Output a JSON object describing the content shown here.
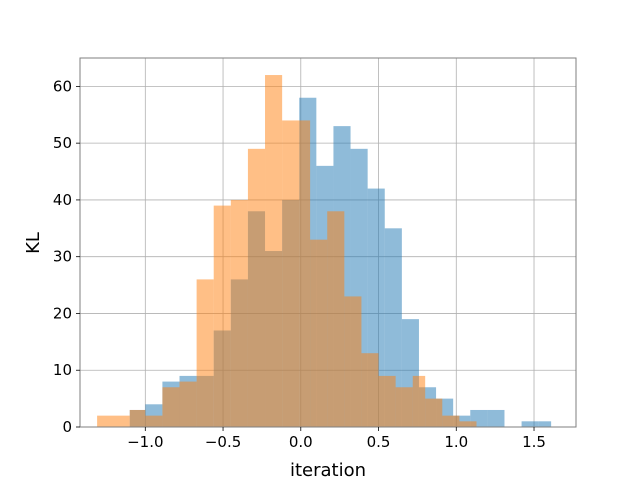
{
  "chart_data": {
    "type": "histogram",
    "xlabel": "iteration",
    "ylabel": "KL",
    "xlim": [
      -1.42,
      1.77
    ],
    "ylim": [
      0,
      65
    ],
    "grid": true,
    "x_ticks": [
      -1.0,
      -0.5,
      0.0,
      0.5,
      1.0,
      1.5
    ],
    "x_tick_labels": [
      "−1.0",
      "−0.5",
      "0.0",
      "0.5",
      "1.0",
      "1.5"
    ],
    "y_ticks": [
      0,
      10,
      20,
      30,
      40,
      50,
      60
    ],
    "y_tick_labels": [
      "0",
      "10",
      "20",
      "30",
      "40",
      "50",
      "60"
    ],
    "series": [
      {
        "color": "#1f77b4",
        "alpha": 0.5,
        "bin_edges": [
          -1.1,
          -1.0,
          -0.89,
          -0.78,
          -0.67,
          -0.56,
          -0.45,
          -0.34,
          -0.23,
          -0.12,
          -0.01,
          0.1,
          0.21,
          0.32,
          0.43,
          0.54,
          0.65,
          0.76,
          0.87,
          0.98,
          1.09,
          1.2,
          1.31,
          1.42,
          1.53,
          1.61
        ],
        "counts": [
          3,
          4,
          8,
          9,
          9,
          17,
          26,
          38,
          31,
          40,
          58,
          46,
          53,
          49,
          42,
          35,
          19,
          7,
          5,
          2,
          3,
          3,
          0,
          1,
          1
        ]
      },
      {
        "color": "#ff7f0e",
        "alpha": 0.5,
        "bin_edges": [
          -1.31,
          -1.1,
          -1.0,
          -0.89,
          -0.78,
          -0.67,
          -0.56,
          -0.45,
          -0.34,
          -0.23,
          -0.12,
          -0.01,
          0.06,
          0.17,
          0.28,
          0.39,
          0.5,
          0.61,
          0.72,
          0.8,
          0.91,
          1.02,
          1.13
        ],
        "counts": [
          2,
          3,
          2,
          7,
          8,
          26,
          39,
          40,
          49,
          62,
          54,
          54,
          33,
          38,
          23,
          13,
          9,
          7,
          9,
          5,
          2,
          1
        ]
      }
    ]
  }
}
